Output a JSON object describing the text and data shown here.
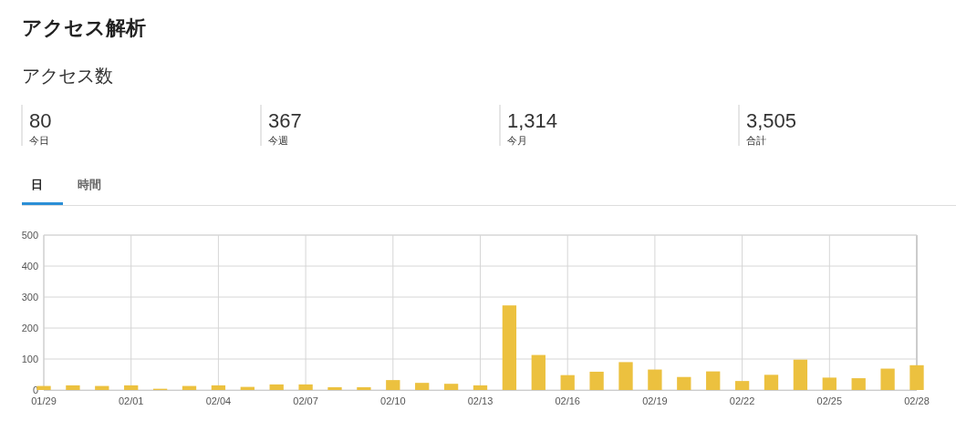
{
  "chart_data": [
    {
      "type": "other",
      "title": "アクセス解析",
      "subtitle": "アクセス数",
      "annotations": [
        "80",
        "今日",
        "367",
        "今週",
        "1,314",
        "今月",
        "3,505",
        "合計"
      ]
    },
    {
      "type": "bar",
      "annotations": [
        "日",
        "時間"
      ],
      "categories": [
        "01/29",
        null,
        null,
        "02/01",
        null,
        null,
        "02/04",
        null,
        null,
        "02/07",
        null,
        null,
        "02/10",
        null,
        null,
        "02/13",
        null,
        null,
        "02/16",
        null,
        null,
        "02/19",
        null,
        null,
        "02/22",
        null,
        null,
        "02/25",
        null,
        null,
        "02/28"
      ],
      "values": [
        13,
        15,
        13,
        15,
        4,
        13,
        15,
        10,
        18,
        18,
        9,
        9,
        32,
        23,
        20,
        15,
        273,
        113,
        48,
        59,
        90,
        66,
        42,
        60,
        29,
        49,
        98,
        40,
        38,
        69,
        80
      ],
      "color": "#ecc13f",
      "ylim": [
        0,
        500
      ],
      "yticks": [
        0,
        100,
        200,
        300,
        400,
        500
      ],
      "grid": true
    }
  ]
}
